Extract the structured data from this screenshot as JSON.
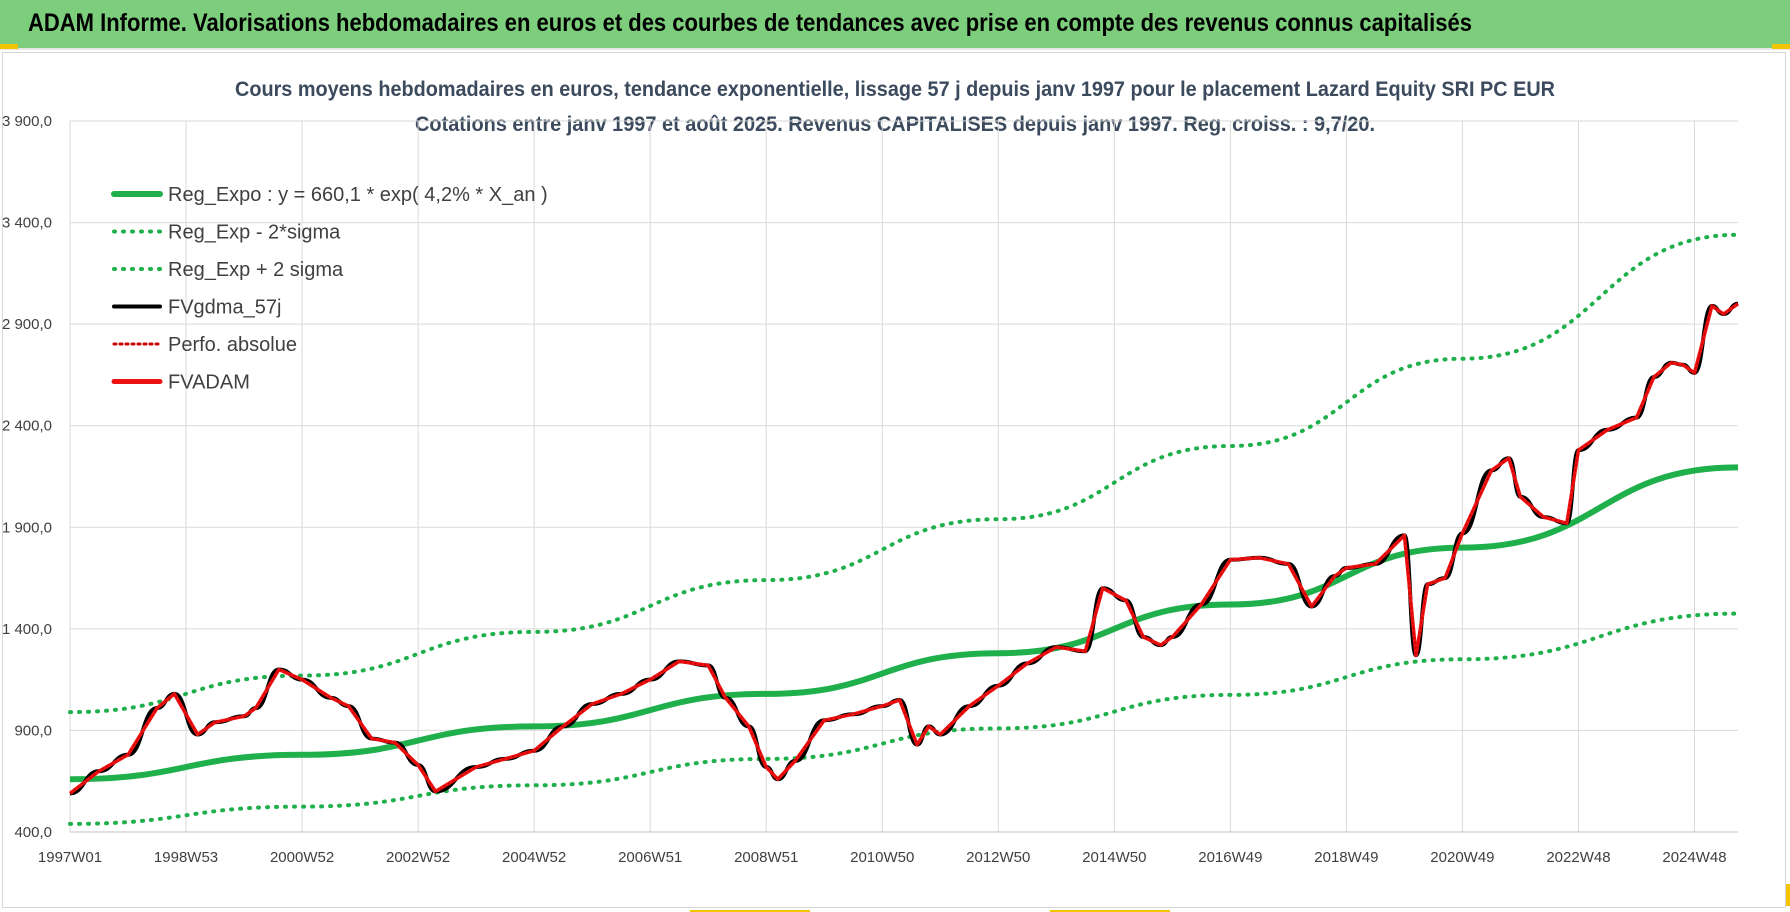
{
  "header": {
    "title": "ADAM Informe. Valorisations hebdomadaires en euros et des courbes de tendances avec prise en compte des revenus connus capitalisés"
  },
  "colors": {
    "header_bg": "#7ccd7c",
    "trend_green": "#1fb04c",
    "band_green": "#1fb04c",
    "smooth_black": "#000000",
    "adam_red": "#ee1111",
    "perfo_red": "#cc0000",
    "grid": "#d9d9d9"
  },
  "chart_data": {
    "type": "line",
    "title": "Cours moyens hebdomadaires en euros, tendance exponentielle, lissage 57 j depuis janv 1997 pour le placement Lazard Equity SRI PC EUR",
    "subtitle": "Cotations entre janv 1997 et août 2025. Revenus CAPITALISES depuis janv 1997. Reg. croiss. : 9,7/20.",
    "ylim": [
      400,
      3900
    ],
    "y_ticks": [
      "400,0",
      "900,0",
      "1 400,0",
      "1 900,0",
      "2 400,0",
      "2 900,0",
      "3 400,0",
      "3 900,0"
    ],
    "x_ticks": [
      "1997W01",
      "1998W53",
      "2000W52",
      "2002W52",
      "2004W52",
      "2006W51",
      "2008W51",
      "2010W50",
      "2012W50",
      "2014W50",
      "2016W49",
      "2018W49",
      "2020W49",
      "2022W48",
      "2024W48"
    ],
    "x_tick_years": [
      1997.0,
      1999.0,
      2001.0,
      2003.0,
      2005.0,
      2007.0,
      2009.0,
      2011.0,
      2013.0,
      2015.0,
      2017.0,
      2019.0,
      2021.0,
      2023.0,
      2025.0
    ],
    "xlim": [
      1997.0,
      2025.75
    ],
    "legend": [
      {
        "key": "reg_expo",
        "label": "Reg_Expo : y = 660,1 * exp( 4,2% *  X_an )"
      },
      {
        "key": "reg_minus",
        "label": "Reg_Exp - 2*sigma"
      },
      {
        "key": "reg_plus",
        "label": "Reg_Exp + 2 sigma"
      },
      {
        "key": "fvgdma",
        "label": "FVgdma_57j"
      },
      {
        "key": "perfo",
        "label": "Perfo. absolue"
      },
      {
        "key": "fvadam",
        "label": "FVADAM"
      }
    ],
    "series": [
      {
        "name": "Reg_Expo : y = 660,1 * exp( 4,2% *  X_an )",
        "x": [
          1997.0,
          2001.0,
          2005.0,
          2009.0,
          2013.0,
          2017.0,
          2021.0,
          2025.75
        ],
        "values": [
          660,
          780,
          920,
          1080,
          1280,
          1520,
          1800,
          2195
        ]
      },
      {
        "name": "Reg_Exp - 2*sigma",
        "x": [
          1997.0,
          2001.0,
          2005.0,
          2009.0,
          2013.0,
          2017.0,
          2021.0,
          2025.75
        ],
        "values": [
          440,
          525,
          630,
          760,
          910,
          1075,
          1250,
          1475
        ]
      },
      {
        "name": "Reg_Exp + 2 sigma",
        "x": [
          1997.0,
          2001.0,
          2005.0,
          2009.0,
          2013.0,
          2017.0,
          2021.0,
          2025.75
        ],
        "values": [
          990,
          1170,
          1385,
          1640,
          1940,
          2300,
          2730,
          3340
        ]
      },
      {
        "name": "FVADAM",
        "x": [
          1997.0,
          1997.5,
          1998.0,
          1998.5,
          1998.8,
          1999.2,
          1999.5,
          2000.0,
          2000.2,
          2000.6,
          2001.0,
          2001.5,
          2001.8,
          2002.2,
          2002.6,
          2003.0,
          2003.3,
          2004.0,
          2004.5,
          2005.0,
          2005.5,
          2006.0,
          2006.5,
          2007.0,
          2007.5,
          2008.0,
          2008.3,
          2008.7,
          2009.0,
          2009.2,
          2009.5,
          2010.0,
          2010.5,
          2011.0,
          2011.3,
          2011.6,
          2011.8,
          2012.0,
          2012.5,
          2013.0,
          2013.5,
          2014.0,
          2014.5,
          2014.8,
          2015.2,
          2015.5,
          2015.8,
          2016.0,
          2016.5,
          2017.0,
          2017.5,
          2018.0,
          2018.4,
          2018.8,
          2019.0,
          2019.5,
          2020.0,
          2020.2,
          2020.4,
          2020.7,
          2021.0,
          2021.5,
          2021.8,
          2022.0,
          2022.4,
          2022.8,
          2023.0,
          2023.5,
          2024.0,
          2024.3,
          2024.6,
          2024.8,
          2025.0,
          2025.3,
          2025.5,
          2025.75
        ],
        "values": [
          590,
          700,
          780,
          1010,
          1080,
          880,
          940,
          970,
          1010,
          1200,
          1150,
          1060,
          1020,
          860,
          840,
          730,
          600,
          720,
          760,
          800,
          920,
          1030,
          1080,
          1150,
          1240,
          1220,
          1060,
          920,
          720,
          660,
          750,
          950,
          980,
          1020,
          1050,
          830,
          920,
          880,
          1020,
          1120,
          1230,
          1310,
          1290,
          1600,
          1540,
          1360,
          1320,
          1360,
          1520,
          1740,
          1750,
          1720,
          1510,
          1660,
          1700,
          1720,
          1860,
          1270,
          1620,
          1650,
          1870,
          2180,
          2240,
          2050,
          1950,
          1920,
          2280,
          2380,
          2440,
          2640,
          2710,
          2700,
          2660,
          2990,
          2950,
          3000
        ]
      }
    ],
    "smoothing_note_visible": false
  }
}
